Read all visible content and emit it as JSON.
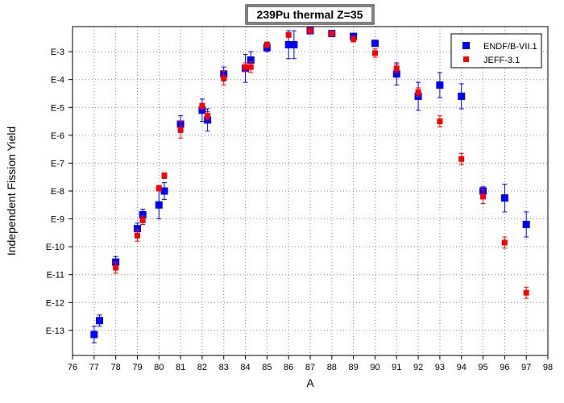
{
  "chart_data": {
    "type": "scatter",
    "title": "239Pu thermal Z=35",
    "xlabel": "A",
    "ylabel": "Independent Fission Yield",
    "xlim": [
      76,
      98
    ],
    "x_ticks": [
      "76",
      "77",
      "78",
      "79",
      "80",
      "81",
      "82",
      "83",
      "84",
      "85",
      "86",
      "87",
      "88",
      "89",
      "90",
      "91",
      "92",
      "93",
      "94",
      "95",
      "96",
      "97",
      "98"
    ],
    "y_scale": "log",
    "ylim_exponent": [
      -13.9,
      -2.1
    ],
    "y_ticks": [
      {
        "label": "E-3",
        "exp": -3
      },
      {
        "label": "E-4",
        "exp": -4
      },
      {
        "label": "E-5",
        "exp": -5
      },
      {
        "label": "E-6",
        "exp": -6
      },
      {
        "label": "E-7",
        "exp": -7
      },
      {
        "label": "E-8",
        "exp": -8
      },
      {
        "label": "E-9",
        "exp": -9
      },
      {
        "label": "E-10",
        "exp": -10
      },
      {
        "label": "E-11",
        "exp": -11
      },
      {
        "label": "E-12",
        "exp": -12
      },
      {
        "label": "E-13",
        "exp": -13
      }
    ],
    "grid": true,
    "legend_position": "top-right",
    "series": [
      {
        "name": "ENDF/B-VII.1",
        "color": "#0000ff",
        "marker": "square",
        "points": [
          {
            "x": 77,
            "exp": -13.15,
            "err": 0.3
          },
          {
            "x": 77.25,
            "exp": -12.65,
            "err": 0.2
          },
          {
            "x": 78,
            "exp": -10.55,
            "err": 0.2
          },
          {
            "x": 79,
            "exp": -9.35,
            "err": 0.2
          },
          {
            "x": 79.25,
            "exp": -8.85,
            "err": 0.2
          },
          {
            "x": 80,
            "exp": -8.5,
            "err": 0.5
          },
          {
            "x": 80.25,
            "exp": -8.0,
            "err": 0.3
          },
          {
            "x": 81,
            "exp": -5.6,
            "err": 0.3
          },
          {
            "x": 82,
            "exp": -5.1,
            "err": 0.4
          },
          {
            "x": 82.25,
            "exp": -5.45,
            "err": 0.4
          },
          {
            "x": 83,
            "exp": -3.8,
            "err": 0.25
          },
          {
            "x": 84,
            "exp": -3.6,
            "err": 0.5
          },
          {
            "x": 84.25,
            "exp": -3.3,
            "err": 0.3
          },
          {
            "x": 85,
            "exp": -2.85,
            "err": 0.15
          },
          {
            "x": 86,
            "exp": -2.75,
            "err": 0.5
          },
          {
            "x": 86.25,
            "exp": -2.75,
            "err": 0.5
          },
          {
            "x": 87,
            "exp": -2.25,
            "err": 0.05
          },
          {
            "x": 88,
            "exp": -2.35,
            "err": 0.05
          },
          {
            "x": 89,
            "exp": -2.45,
            "err": 0.1
          },
          {
            "x": 90,
            "exp": -2.7,
            "err": 0.1
          },
          {
            "x": 91,
            "exp": -3.8,
            "err": 0.4
          },
          {
            "x": 92,
            "exp": -4.6,
            "err": 0.5
          },
          {
            "x": 93,
            "exp": -4.2,
            "err": 0.45
          },
          {
            "x": 94,
            "exp": -4.6,
            "err": 0.45
          },
          {
            "x": 95,
            "exp": -8.0,
            "err": 0.15
          },
          {
            "x": 96,
            "exp": -8.25,
            "err": 0.5
          },
          {
            "x": 97,
            "exp": -9.2,
            "err": 0.45
          }
        ]
      },
      {
        "name": "JEFF-3.1",
        "color": "#ff0000",
        "marker": "square",
        "points": [
          {
            "x": 78,
            "exp": -10.75,
            "err": 0.2
          },
          {
            "x": 79,
            "exp": -9.6,
            "err": 0.2
          },
          {
            "x": 79.25,
            "exp": -9.05,
            "err": 0.15
          },
          {
            "x": 80,
            "exp": -7.9,
            "err": 0.1
          },
          {
            "x": 80.25,
            "exp": -7.45,
            "err": 0.1
          },
          {
            "x": 81,
            "exp": -5.8,
            "err": 0.3
          },
          {
            "x": 82,
            "exp": -4.95,
            "err": 0.1
          },
          {
            "x": 82.25,
            "exp": -5.3,
            "err": 0.15
          },
          {
            "x": 83,
            "exp": -3.95,
            "err": 0.25
          },
          {
            "x": 84,
            "exp": -3.55,
            "err": 0.15
          },
          {
            "x": 84.25,
            "exp": -3.55,
            "err": 0.2
          },
          {
            "x": 85,
            "exp": -2.75,
            "err": 0.1
          },
          {
            "x": 86,
            "exp": -2.4,
            "err": 0.05
          },
          {
            "x": 87,
            "exp": -2.25,
            "err": 0.05
          },
          {
            "x": 88,
            "exp": -2.35,
            "err": 0.05
          },
          {
            "x": 89,
            "exp": -2.55,
            "err": 0.1
          },
          {
            "x": 90,
            "exp": -3.05,
            "err": 0.15
          },
          {
            "x": 91,
            "exp": -3.6,
            "err": 0.15
          },
          {
            "x": 92,
            "exp": -4.45,
            "err": 0.15
          },
          {
            "x": 93,
            "exp": -5.5,
            "err": 0.2
          },
          {
            "x": 94,
            "exp": -6.85,
            "err": 0.2
          },
          {
            "x": 95,
            "exp": -8.2,
            "err": 0.25
          },
          {
            "x": 96,
            "exp": -9.85,
            "err": 0.2
          },
          {
            "x": 97,
            "exp": -11.65,
            "err": 0.2
          }
        ]
      }
    ]
  }
}
